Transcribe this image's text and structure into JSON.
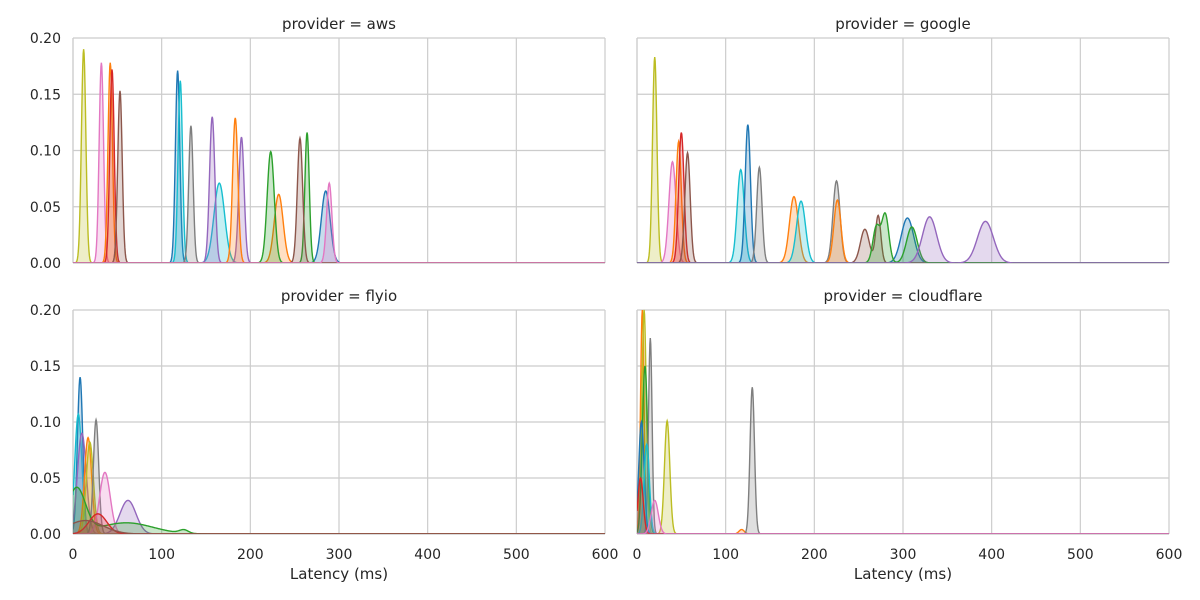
{
  "chart_data": {
    "type": "area",
    "subtype": "kde-facet-grid",
    "xlabel": "Latency (ms)",
    "xlim": [
      0,
      600
    ],
    "ylim": [
      0,
      0.2
    ],
    "x_ticks": [
      0,
      100,
      200,
      300,
      400,
      500,
      600
    ],
    "y_ticks": [
      0.0,
      0.05,
      0.1,
      0.15,
      0.2
    ],
    "x_tick_labels": [
      "0",
      "100",
      "200",
      "300",
      "400",
      "500",
      "600"
    ],
    "y_tick_labels": [
      "0.00",
      "0.05",
      "0.10",
      "0.15",
      "0.20"
    ],
    "grid": true,
    "legend": "none",
    "palette": [
      "#1f77b4",
      "#ff7f0e",
      "#2ca02c",
      "#d62728",
      "#9467bd",
      "#8c564b",
      "#e377c2",
      "#7f7f7f",
      "#bcbd22",
      "#17becf"
    ],
    "facets": [
      {
        "title": "provider = aws",
        "series": [
          {
            "color": "#bcbd22",
            "peaks": [
              {
                "x": 12,
                "h": 0.19,
                "w": 2.5
              }
            ]
          },
          {
            "color": "#e377c2",
            "peaks": [
              {
                "x": 32,
                "h": 0.178,
                "w": 2.5
              }
            ]
          },
          {
            "color": "#ff7f0e",
            "peaks": [
              {
                "x": 42,
                "h": 0.178,
                "w": 2.5
              }
            ]
          },
          {
            "color": "#d62728",
            "peaks": [
              {
                "x": 44,
                "h": 0.172,
                "w": 2.5
              }
            ]
          },
          {
            "color": "#8c564b",
            "peaks": [
              {
                "x": 53,
                "h": 0.153,
                "w": 2.5
              }
            ]
          },
          {
            "color": "#1f77b4",
            "peaks": [
              {
                "x": 118,
                "h": 0.171,
                "w": 2.5
              },
              {
                "x": 285,
                "h": 0.064,
                "w": 5
              }
            ]
          },
          {
            "color": "#17becf",
            "peaks": [
              {
                "x": 121,
                "h": 0.162,
                "w": 2.5
              },
              {
                "x": 165,
                "h": 0.071,
                "w": 6
              }
            ]
          },
          {
            "color": "#7f7f7f",
            "peaks": [
              {
                "x": 133,
                "h": 0.122,
                "w": 2.5
              }
            ]
          },
          {
            "color": "#9467bd",
            "peaks": [
              {
                "x": 157,
                "h": 0.13,
                "w": 3
              },
              {
                "x": 190,
                "h": 0.112,
                "w": 3
              }
            ]
          },
          {
            "color": "#ff7f0e",
            "peaks": [
              {
                "x": 183,
                "h": 0.129,
                "w": 3
              },
              {
                "x": 232,
                "h": 0.061,
                "w": 5
              }
            ]
          },
          {
            "color": "#2ca02c",
            "peaks": [
              {
                "x": 223,
                "h": 0.099,
                "w": 4
              },
              {
                "x": 264,
                "h": 0.116,
                "w": 2.5
              }
            ]
          },
          {
            "color": "#8c564b",
            "peaks": [
              {
                "x": 256,
                "h": 0.111,
                "w": 3
              }
            ]
          },
          {
            "color": "#e377c2",
            "peaks": [
              {
                "x": 289,
                "h": 0.071,
                "w": 3
              }
            ]
          }
        ]
      },
      {
        "title": "provider = google",
        "series": [
          {
            "color": "#bcbd22",
            "peaks": [
              {
                "x": 20,
                "h": 0.183,
                "w": 2.5
              }
            ]
          },
          {
            "color": "#e377c2",
            "peaks": [
              {
                "x": 40,
                "h": 0.09,
                "w": 4
              }
            ]
          },
          {
            "color": "#ff7f0e",
            "peaks": [
              {
                "x": 47,
                "h": 0.108,
                "w": 3
              }
            ]
          },
          {
            "color": "#d62728",
            "peaks": [
              {
                "x": 50,
                "h": 0.116,
                "w": 3
              }
            ]
          },
          {
            "color": "#8c564b",
            "peaks": [
              {
                "x": 57,
                "h": 0.098,
                "w": 3
              }
            ]
          },
          {
            "color": "#17becf",
            "peaks": [
              {
                "x": 117,
                "h": 0.083,
                "w": 4
              }
            ]
          },
          {
            "color": "#1f77b4",
            "peaks": [
              {
                "x": 125,
                "h": 0.123,
                "w": 3
              },
              {
                "x": 305,
                "h": 0.04,
                "w": 7
              }
            ]
          },
          {
            "color": "#7f7f7f",
            "peaks": [
              {
                "x": 138,
                "h": 0.085,
                "w": 3
              },
              {
                "x": 225,
                "h": 0.073,
                "w": 4
              }
            ]
          },
          {
            "color": "#ff7f0e",
            "peaks": [
              {
                "x": 177,
                "h": 0.059,
                "w": 5
              },
              {
                "x": 226,
                "h": 0.056,
                "w": 4
              }
            ]
          },
          {
            "color": "#17becf",
            "peaks": [
              {
                "x": 185,
                "h": 0.055,
                "w": 5
              }
            ]
          },
          {
            "color": "#8c564b",
            "peaks": [
              {
                "x": 257,
                "h": 0.03,
                "w": 5
              },
              {
                "x": 272,
                "h": 0.042,
                "w": 3
              }
            ]
          },
          {
            "color": "#2ca02c",
            "peaks": [
              {
                "x": 270,
                "h": 0.032,
                "w": 4
              },
              {
                "x": 280,
                "h": 0.043,
                "w": 4
              },
              {
                "x": 310,
                "h": 0.032,
                "w": 6
              }
            ]
          },
          {
            "color": "#9467bd",
            "peaks": [
              {
                "x": 330,
                "h": 0.041,
                "w": 8
              },
              {
                "x": 393,
                "h": 0.037,
                "w": 9
              }
            ]
          }
        ]
      },
      {
        "title": "provider = flyio",
        "series": [
          {
            "color": "#1f77b4",
            "peaks": [
              {
                "x": 8,
                "h": 0.14,
                "w": 3
              }
            ]
          },
          {
            "color": "#17becf",
            "peaks": [
              {
                "x": 6,
                "h": 0.107,
                "w": 4
              }
            ]
          },
          {
            "color": "#9467bd",
            "peaks": [
              {
                "x": 10,
                "h": 0.09,
                "w": 5
              },
              {
                "x": 62,
                "h": 0.03,
                "w": 9
              }
            ]
          },
          {
            "color": "#ff7f0e",
            "peaks": [
              {
                "x": 17,
                "h": 0.086,
                "w": 4
              }
            ]
          },
          {
            "color": "#bcbd22",
            "peaks": [
              {
                "x": 19,
                "h": 0.082,
                "w": 4
              }
            ]
          },
          {
            "color": "#7f7f7f",
            "peaks": [
              {
                "x": 26,
                "h": 0.102,
                "w": 3
              }
            ]
          },
          {
            "color": "#e377c2",
            "peaks": [
              {
                "x": 36,
                "h": 0.055,
                "w": 6
              }
            ]
          },
          {
            "color": "#2ca02c",
            "peaks": [
              {
                "x": 4,
                "h": 0.04,
                "w": 10
              },
              {
                "x": 60,
                "h": 0.01,
                "w": 30
              },
              {
                "x": 125,
                "h": 0.003,
                "w": 5
              }
            ]
          },
          {
            "color": "#d62728",
            "peaks": [
              {
                "x": 28,
                "h": 0.018,
                "w": 10
              }
            ]
          },
          {
            "color": "#8c564b",
            "peaks": [
              {
                "x": 14,
                "h": 0.012,
                "w": 20
              }
            ]
          }
        ]
      },
      {
        "title": "provider = cloudflare",
        "series": [
          {
            "color": "#ff7f0e",
            "peaks": [
              {
                "x": 6,
                "h": 0.2,
                "w": 2
              },
              {
                "x": 118,
                "h": 0.004,
                "w": 3
              }
            ]
          },
          {
            "color": "#bcbd22",
            "peaks": [
              {
                "x": 8,
                "h": 0.2,
                "w": 2.5
              },
              {
                "x": 34,
                "h": 0.101,
                "w": 3
              }
            ]
          },
          {
            "color": "#2ca02c",
            "peaks": [
              {
                "x": 9,
                "h": 0.15,
                "w": 3
              }
            ]
          },
          {
            "color": "#7f7f7f",
            "peaks": [
              {
                "x": 15,
                "h": 0.175,
                "w": 2
              },
              {
                "x": 130,
                "h": 0.131,
                "w": 2.5
              }
            ]
          },
          {
            "color": "#1f77b4",
            "peaks": [
              {
                "x": 5,
                "h": 0.1,
                "w": 3
              }
            ]
          },
          {
            "color": "#17becf",
            "peaks": [
              {
                "x": 11,
                "h": 0.08,
                "w": 3
              }
            ]
          },
          {
            "color": "#d62728",
            "peaks": [
              {
                "x": 4,
                "h": 0.05,
                "w": 3
              }
            ]
          },
          {
            "color": "#e377c2",
            "peaks": [
              {
                "x": 20,
                "h": 0.03,
                "w": 4
              }
            ]
          }
        ]
      }
    ]
  }
}
